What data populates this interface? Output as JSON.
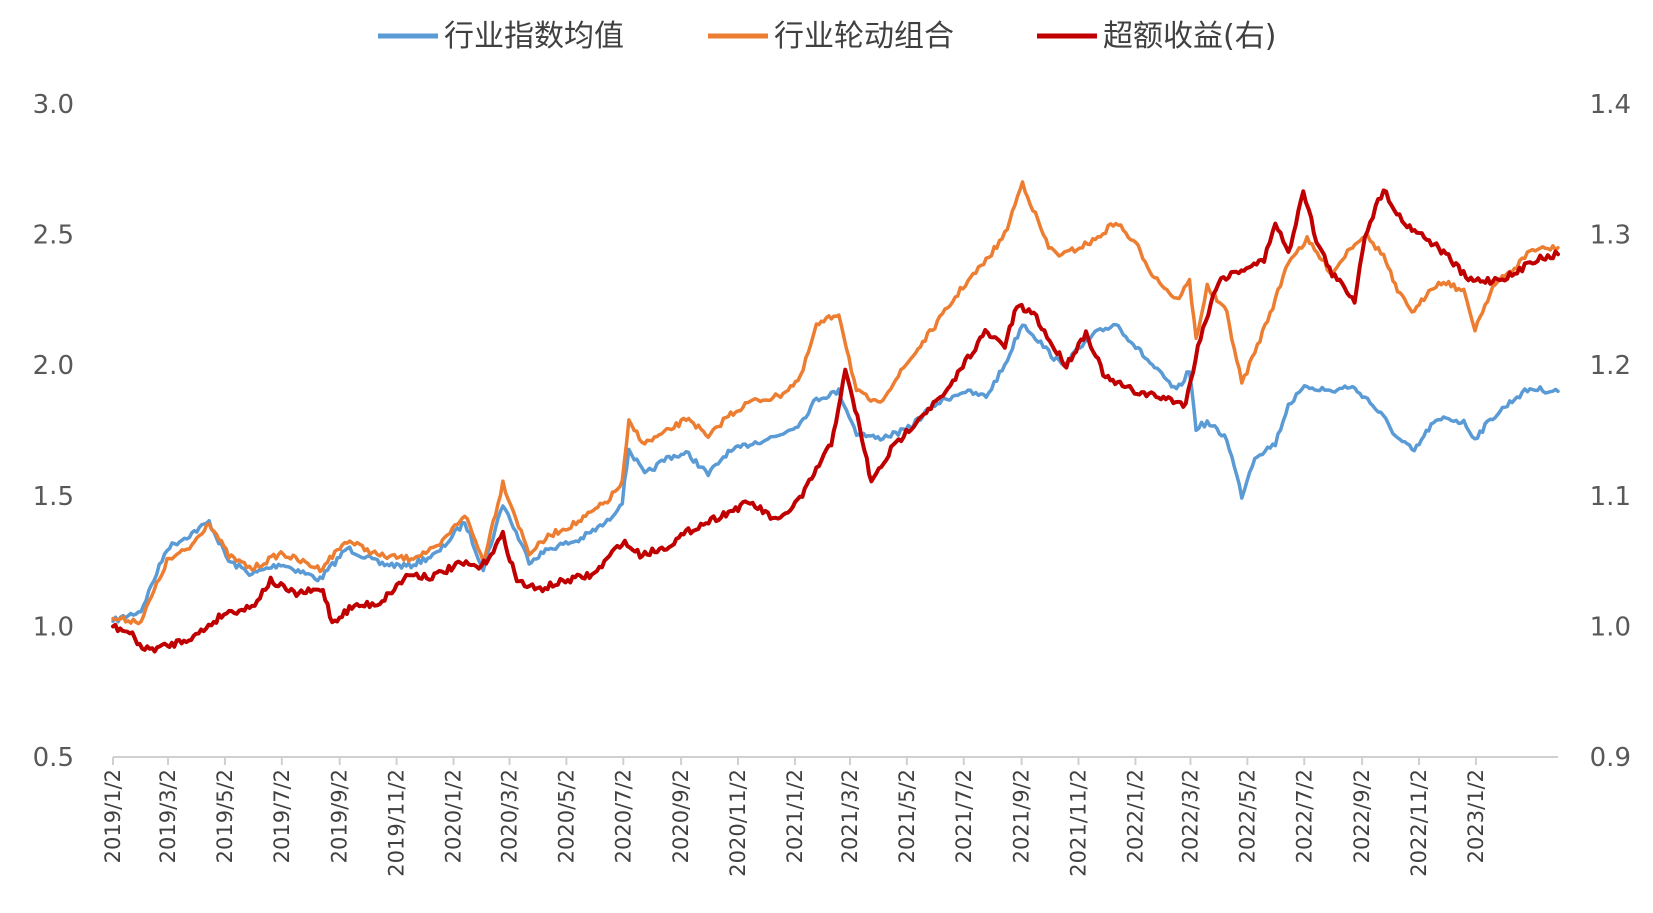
{
  "chart_data": {
    "type": "line",
    "title": "",
    "legend": {
      "placement": "top",
      "items": [
        {
          "label": "行业指数均值",
          "color": "#5B9BD5"
        },
        {
          "label": "行业轮动组合",
          "color": "#ED7D31"
        },
        {
          "label": "超额收益(右)",
          "color": "#C00000"
        }
      ]
    },
    "y_left": {
      "min": 0.5,
      "max": 3.0,
      "ticks": [
        "0.5",
        "1.0",
        "1.5",
        "2.0",
        "2.5",
        "3.0"
      ]
    },
    "y_right": {
      "min": 0.9,
      "max": 1.4,
      "ticks": [
        "0.9",
        "1.0",
        "1.1",
        "1.2",
        "1.3",
        "1.4"
      ]
    },
    "x_axis": {
      "start": "2019-01-02",
      "end": "2023-03-31",
      "tick_labels": [
        "2019/1/2",
        "2019/3/2",
        "2019/5/2",
        "2019/7/2",
        "2019/9/2",
        "2019/11/2",
        "2020/1/2",
        "2020/3/2",
        "2020/5/2",
        "2020/7/2",
        "2020/9/2",
        "2020/11/2",
        "2021/1/2",
        "2021/3/2",
        "2021/5/2",
        "2021/7/2",
        "2021/9/2",
        "2021/11/2",
        "2022/1/2",
        "2022/3/2",
        "2022/5/2",
        "2022/7/2",
        "2022/9/2",
        "2022/11/2",
        "2023/1/2"
      ],
      "grid": false
    },
    "series": [
      {
        "name": "行业指数均值",
        "axis": "left",
        "color": "#5B9BD5",
        "points": [
          [
            "2019-01-02",
            1.02
          ],
          [
            "2019-02-01",
            1.06
          ],
          [
            "2019-03-01",
            1.3
          ],
          [
            "2019-03-25",
            1.35
          ],
          [
            "2019-04-15",
            1.4
          ],
          [
            "2019-05-06",
            1.25
          ],
          [
            "2019-05-31",
            1.2
          ],
          [
            "2019-07-01",
            1.24
          ],
          [
            "2019-08-12",
            1.18
          ],
          [
            "2019-09-10",
            1.3
          ],
          [
            "2019-10-15",
            1.24
          ],
          [
            "2019-11-15",
            1.23
          ],
          [
            "2019-12-16",
            1.28
          ],
          [
            "2020-01-14",
            1.4
          ],
          [
            "2020-02-03",
            1.22
          ],
          [
            "2020-02-24",
            1.47
          ],
          [
            "2020-03-23",
            1.25
          ],
          [
            "2020-04-15",
            1.3
          ],
          [
            "2020-05-15",
            1.33
          ],
          [
            "2020-06-15",
            1.4
          ],
          [
            "2020-07-01",
            1.48
          ],
          [
            "2020-07-08",
            1.68
          ],
          [
            "2020-07-25",
            1.58
          ],
          [
            "2020-08-20",
            1.65
          ],
          [
            "2020-09-10",
            1.66
          ],
          [
            "2020-10-01",
            1.58
          ],
          [
            "2020-10-20",
            1.66
          ],
          [
            "2020-11-15",
            1.7
          ],
          [
            "2020-12-15",
            1.73
          ],
          [
            "2021-01-08",
            1.78
          ],
          [
            "2021-01-25",
            1.87
          ],
          [
            "2021-02-18",
            1.9
          ],
          [
            "2021-03-09",
            1.74
          ],
          [
            "2021-04-01",
            1.72
          ],
          [
            "2021-05-01",
            1.75
          ],
          [
            "2021-06-01",
            1.85
          ],
          [
            "2021-07-01",
            1.9
          ],
          [
            "2021-07-26",
            1.88
          ],
          [
            "2021-08-15",
            2.0
          ],
          [
            "2021-09-03",
            2.16
          ],
          [
            "2021-09-14",
            2.12
          ],
          [
            "2021-10-01",
            2.05
          ],
          [
            "2021-10-15",
            2.0
          ],
          [
            "2021-11-20",
            2.12
          ],
          [
            "2021-12-12",
            2.16
          ],
          [
            "2022-01-05",
            2.06
          ],
          [
            "2022-01-20",
            2.0
          ],
          [
            "2022-02-15",
            1.9
          ],
          [
            "2022-03-01",
            1.98
          ],
          [
            "2022-03-08",
            1.76
          ],
          [
            "2022-03-20",
            1.78
          ],
          [
            "2022-04-10",
            1.72
          ],
          [
            "2022-04-26",
            1.5
          ],
          [
            "2022-05-10",
            1.65
          ],
          [
            "2022-06-01",
            1.7
          ],
          [
            "2022-06-15",
            1.85
          ],
          [
            "2022-07-05",
            1.92
          ],
          [
            "2022-08-01",
            1.9
          ],
          [
            "2022-08-20",
            1.92
          ],
          [
            "2022-09-05",
            1.88
          ],
          [
            "2022-09-25",
            1.8
          ],
          [
            "2022-10-10",
            1.72
          ],
          [
            "2022-10-28",
            1.67
          ],
          [
            "2022-11-15",
            1.77
          ],
          [
            "2022-12-01",
            1.8
          ],
          [
            "2022-12-20",
            1.78
          ],
          [
            "2023-01-01",
            1.72
          ],
          [
            "2023-01-20",
            1.8
          ],
          [
            "2023-02-15",
            1.88
          ],
          [
            "2023-03-01",
            1.91
          ],
          [
            "2023-03-31",
            1.9
          ]
        ]
      },
      {
        "name": "行业轮动组合",
        "axis": "left",
        "color": "#ED7D31",
        "points": [
          [
            "2019-01-02",
            1.03
          ],
          [
            "2019-02-01",
            1.02
          ],
          [
            "2019-03-01",
            1.25
          ],
          [
            "2019-03-25",
            1.3
          ],
          [
            "2019-04-15",
            1.4
          ],
          [
            "2019-05-06",
            1.27
          ],
          [
            "2019-05-31",
            1.22
          ],
          [
            "2019-07-01",
            1.28
          ],
          [
            "2019-08-12",
            1.22
          ],
          [
            "2019-09-10",
            1.33
          ],
          [
            "2019-10-15",
            1.27
          ],
          [
            "2019-11-15",
            1.26
          ],
          [
            "2019-12-16",
            1.3
          ],
          [
            "2020-01-14",
            1.43
          ],
          [
            "2020-02-03",
            1.25
          ],
          [
            "2020-02-24",
            1.55
          ],
          [
            "2020-03-23",
            1.28
          ],
          [
            "2020-04-15",
            1.35
          ],
          [
            "2020-05-15",
            1.4
          ],
          [
            "2020-06-15",
            1.48
          ],
          [
            "2020-07-01",
            1.55
          ],
          [
            "2020-07-08",
            1.78
          ],
          [
            "2020-07-25",
            1.7
          ],
          [
            "2020-08-20",
            1.75
          ],
          [
            "2020-09-10",
            1.8
          ],
          [
            "2020-10-01",
            1.72
          ],
          [
            "2020-10-20",
            1.8
          ],
          [
            "2020-11-15",
            1.86
          ],
          [
            "2020-12-15",
            1.88
          ],
          [
            "2021-01-08",
            1.95
          ],
          [
            "2021-01-25",
            2.15
          ],
          [
            "2021-02-18",
            2.2
          ],
          [
            "2021-03-09",
            1.9
          ],
          [
            "2021-04-01",
            1.85
          ],
          [
            "2021-05-01",
            2.0
          ],
          [
            "2021-06-01",
            2.15
          ],
          [
            "2021-07-01",
            2.3
          ],
          [
            "2021-07-26",
            2.4
          ],
          [
            "2021-08-15",
            2.5
          ],
          [
            "2021-09-03",
            2.7
          ],
          [
            "2021-09-14",
            2.6
          ],
          [
            "2021-10-01",
            2.45
          ],
          [
            "2021-10-15",
            2.42
          ],
          [
            "2021-11-20",
            2.48
          ],
          [
            "2021-12-12",
            2.55
          ],
          [
            "2022-01-05",
            2.45
          ],
          [
            "2022-01-20",
            2.35
          ],
          [
            "2022-02-15",
            2.25
          ],
          [
            "2022-03-01",
            2.32
          ],
          [
            "2022-03-08",
            2.1
          ],
          [
            "2022-03-20",
            2.3
          ],
          [
            "2022-04-10",
            2.2
          ],
          [
            "2022-04-26",
            1.93
          ],
          [
            "2022-05-10",
            2.05
          ],
          [
            "2022-06-01",
            2.25
          ],
          [
            "2022-06-15",
            2.4
          ],
          [
            "2022-07-05",
            2.48
          ],
          [
            "2022-08-01",
            2.35
          ],
          [
            "2022-08-20",
            2.45
          ],
          [
            "2022-09-05",
            2.5
          ],
          [
            "2022-09-25",
            2.42
          ],
          [
            "2022-10-10",
            2.28
          ],
          [
            "2022-10-28",
            2.2
          ],
          [
            "2022-11-15",
            2.3
          ],
          [
            "2022-12-01",
            2.32
          ],
          [
            "2022-12-20",
            2.28
          ],
          [
            "2023-01-01",
            2.14
          ],
          [
            "2023-01-20",
            2.3
          ],
          [
            "2023-02-15",
            2.38
          ],
          [
            "2023-03-01",
            2.44
          ],
          [
            "2023-03-31",
            2.45
          ]
        ]
      },
      {
        "name": "超额收益(右)",
        "axis": "right",
        "color": "#C00000",
        "points": [
          [
            "2019-01-02",
            1.0
          ],
          [
            "2019-01-20",
            0.995
          ],
          [
            "2019-02-05",
            0.982
          ],
          [
            "2019-03-01",
            0.985
          ],
          [
            "2019-04-01",
            0.993
          ],
          [
            "2019-05-01",
            1.01
          ],
          [
            "2019-05-31",
            1.015
          ],
          [
            "2019-06-20",
            1.035
          ],
          [
            "2019-07-15",
            1.025
          ],
          [
            "2019-08-15",
            1.028
          ],
          [
            "2019-08-25",
            1.003
          ],
          [
            "2019-09-15",
            1.015
          ],
          [
            "2019-10-15",
            1.018
          ],
          [
            "2019-11-15",
            1.04
          ],
          [
            "2019-12-10",
            1.038
          ],
          [
            "2020-01-10",
            1.048
          ],
          [
            "2020-02-01",
            1.045
          ],
          [
            "2020-02-24",
            1.07
          ],
          [
            "2020-03-10",
            1.035
          ],
          [
            "2020-04-01",
            1.028
          ],
          [
            "2020-05-01",
            1.035
          ],
          [
            "2020-06-01",
            1.04
          ],
          [
            "2020-07-01",
            1.065
          ],
          [
            "2020-07-20",
            1.055
          ],
          [
            "2020-08-15",
            1.06
          ],
          [
            "2020-09-15",
            1.075
          ],
          [
            "2020-10-15",
            1.085
          ],
          [
            "2020-11-15",
            1.095
          ],
          [
            "2020-12-15",
            1.08
          ],
          [
            "2021-01-10",
            1.1
          ],
          [
            "2021-01-25",
            1.12
          ],
          [
            "2021-02-10",
            1.14
          ],
          [
            "2021-02-25",
            1.195
          ],
          [
            "2021-03-10",
            1.16
          ],
          [
            "2021-03-25",
            1.11
          ],
          [
            "2021-04-15",
            1.135
          ],
          [
            "2021-05-15",
            1.16
          ],
          [
            "2021-06-15",
            1.18
          ],
          [
            "2021-07-01",
            1.2
          ],
          [
            "2021-07-25",
            1.225
          ],
          [
            "2021-08-15",
            1.215
          ],
          [
            "2021-08-28",
            1.245
          ],
          [
            "2021-09-15",
            1.24
          ],
          [
            "2021-10-05",
            1.215
          ],
          [
            "2021-10-20",
            1.2
          ],
          [
            "2021-11-10",
            1.225
          ],
          [
            "2021-12-01",
            1.19
          ],
          [
            "2022-01-01",
            1.18
          ],
          [
            "2022-02-01",
            1.175
          ],
          [
            "2022-02-25",
            1.17
          ],
          [
            "2022-03-10",
            1.215
          ],
          [
            "2022-04-01",
            1.265
          ],
          [
            "2022-05-01",
            1.275
          ],
          [
            "2022-05-20",
            1.28
          ],
          [
            "2022-06-01",
            1.31
          ],
          [
            "2022-06-15",
            1.285
          ],
          [
            "2022-07-01",
            1.335
          ],
          [
            "2022-07-15",
            1.295
          ],
          [
            "2022-08-01",
            1.27
          ],
          [
            "2022-08-25",
            1.25
          ],
          [
            "2022-09-05",
            1.3
          ],
          [
            "2022-09-25",
            1.335
          ],
          [
            "2022-10-15",
            1.31
          ],
          [
            "2022-11-05",
            1.3
          ],
          [
            "2022-12-01",
            1.285
          ],
          [
            "2022-12-25",
            1.265
          ],
          [
            "2023-01-20",
            1.265
          ],
          [
            "2023-02-15",
            1.27
          ],
          [
            "2023-03-01",
            1.28
          ],
          [
            "2023-03-31",
            1.285
          ]
        ]
      }
    ]
  }
}
